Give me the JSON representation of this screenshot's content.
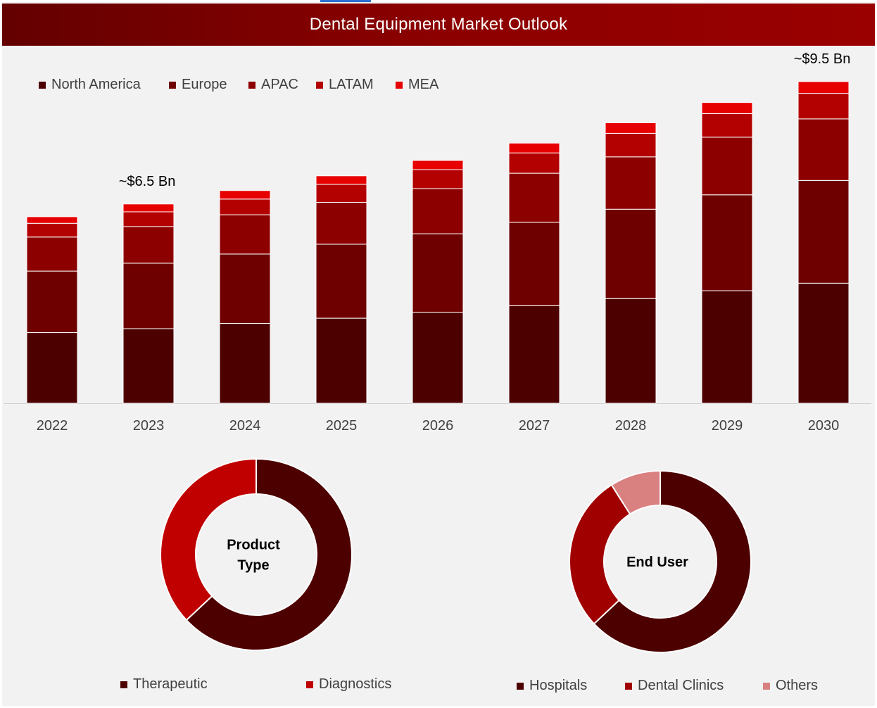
{
  "header": {
    "title": "Dental Equipment Market Outlook"
  },
  "colors": {
    "north_america": "#4d0000",
    "europe": "#6e0000",
    "apac": "#8c0000",
    "latam": "#b30000",
    "mea": "#e60000",
    "therapeutic": "#4d0000",
    "diagnostics": "#c00000",
    "hospitals": "#4d0000",
    "dental_clinics": "#a00000",
    "others": "#d98080"
  },
  "chart_data": [
    {
      "type": "bar",
      "stacked": true,
      "categories": [
        "2022",
        "2023",
        "2024",
        "2025",
        "2026",
        "2027",
        "2028",
        "2029",
        "2030"
      ],
      "series": [
        {
          "name": "North America",
          "values": [
            2.16,
            2.28,
            2.44,
            2.6,
            2.78,
            2.98,
            3.2,
            3.44,
            3.67
          ]
        },
        {
          "name": "Europe",
          "values": [
            1.88,
            2.0,
            2.12,
            2.26,
            2.4,
            2.55,
            2.73,
            2.93,
            3.14
          ]
        },
        {
          "name": "APAC",
          "values": [
            1.04,
            1.12,
            1.2,
            1.28,
            1.38,
            1.5,
            1.6,
            1.76,
            1.88
          ]
        },
        {
          "name": "LATAM",
          "values": [
            0.42,
            0.45,
            0.48,
            0.55,
            0.58,
            0.62,
            0.72,
            0.72,
            0.78
          ]
        },
        {
          "name": "MEA",
          "values": [
            0.2,
            0.24,
            0.26,
            0.26,
            0.28,
            0.3,
            0.32,
            0.34,
            0.36
          ]
        }
      ],
      "annotations": [
        {
          "category": "2023",
          "text": "~$6.5 Bn"
        },
        {
          "category": "2030",
          "text": "~$9.5 Bn"
        }
      ],
      "legend_position": "top-left",
      "grid": false
    },
    {
      "type": "pie",
      "donut": true,
      "center_label": [
        "Product",
        "Type"
      ],
      "categories": [
        "Therapeutic",
        "Diagnostics"
      ],
      "values": [
        63,
        37
      ]
    },
    {
      "type": "pie",
      "donut": true,
      "center_label": [
        "End User"
      ],
      "categories": [
        "Hospitals",
        "Dental Clinics",
        "Others"
      ],
      "values": [
        63,
        28,
        9
      ]
    }
  ]
}
